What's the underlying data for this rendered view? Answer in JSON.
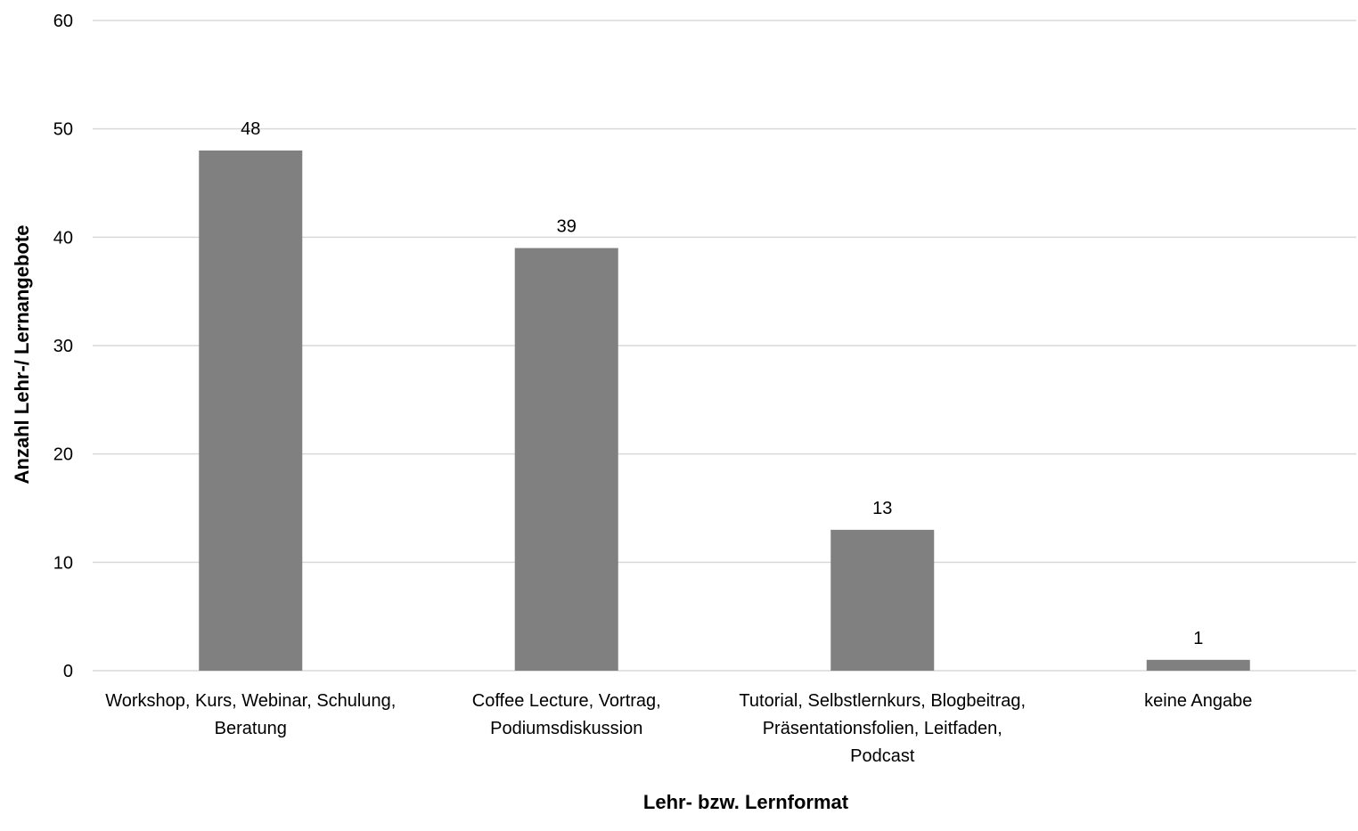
{
  "chart_data": {
    "type": "bar",
    "categories": [
      [
        "Workshop, Kurs, Webinar, Schulung,",
        "Beratung"
      ],
      [
        "Coffee Lecture, Vortrag,",
        "Podiumsdiskussion"
      ],
      [
        "Tutorial, Selbstlernkurs, Blogbeitrag,",
        "Präsentationsfolien, Leitfaden,",
        "Podcast"
      ],
      [
        "keine Angabe"
      ]
    ],
    "values": [
      48,
      39,
      13,
      1
    ],
    "data_labels": [
      "48",
      "39",
      "13",
      "1"
    ],
    "ylim": [
      0,
      60
    ],
    "yticks": [
      0,
      10,
      20,
      30,
      40,
      50,
      60
    ],
    "ytick_labels": [
      "0",
      "10",
      "20",
      "30",
      "40",
      "50",
      "60"
    ],
    "xlabel": "Lehr- bzw. Lernformat",
    "ylabel": "Anzahl Lehr-/ Lernangebote",
    "grid": true,
    "bar_color": "#808080",
    "grid_color": "#d9d9d9"
  }
}
